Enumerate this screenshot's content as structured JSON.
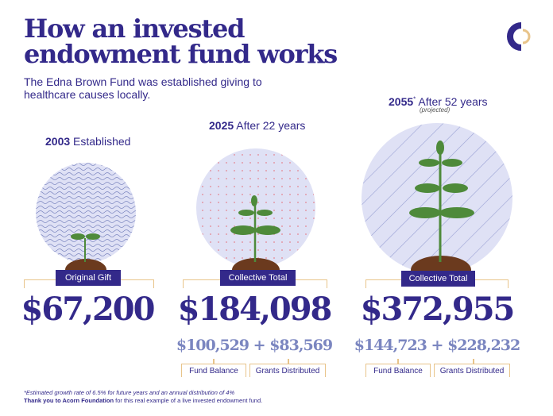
{
  "header": {
    "title_line1": "How an invested",
    "title_line2": "endowment fund works",
    "subtitle_line1": "The Edna Brown Fund was established giving to",
    "subtitle_line2": "healthcare causes locally.",
    "logo": "acorn-c-logo"
  },
  "stages": [
    {
      "year": "2003",
      "caption": "Established",
      "label": "Original Gift",
      "total": "$67,200",
      "pattern": "wavy-lines"
    },
    {
      "year": "2025",
      "caption": "After 22 years",
      "label": "Collective Total",
      "total": "$184,098",
      "fund_balance": "$100,529",
      "plus": "+",
      "grants": "$83,569",
      "fund_balance_label": "Fund Balance",
      "grants_label": "Grants Distributed",
      "pattern": "dots"
    },
    {
      "year": "2055",
      "asterisk": "*",
      "caption": "After 52 years",
      "note": "(projected)",
      "label": "Collective Total",
      "total": "$372,955",
      "fund_balance": "$144,723",
      "plus": "+",
      "grants": "$228,232",
      "fund_balance_label": "Fund Balance",
      "grants_label": "Grants Distributed",
      "pattern": "diagonal-stripes"
    }
  ],
  "footer": {
    "note": "*Estimated growth rate of 6.5% for future years and an annual distribution of 4%",
    "thanks_bold": "Thank you to Acorn Foundation",
    "thanks_rest": " for this real example of a live invested endowment fund."
  },
  "colors": {
    "navy": "#33298a",
    "light_blue": "#7b86c0",
    "gold": "#e8c48a",
    "circle": "#dfe1f5",
    "plant": "#4e8a3a",
    "soil": "#6b3a1e"
  }
}
